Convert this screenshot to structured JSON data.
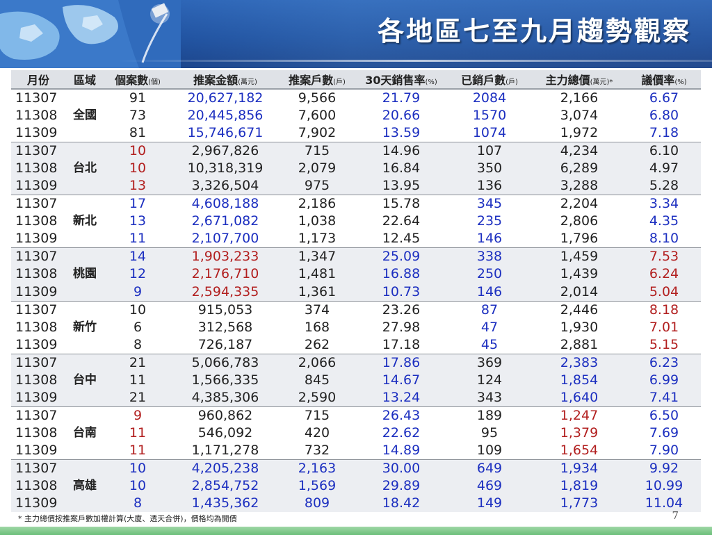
{
  "title": "各地區七至九月趨勢觀察",
  "headers": [
    {
      "label": "月份",
      "unit": ""
    },
    {
      "label": "區域",
      "unit": ""
    },
    {
      "label": "個案數",
      "unit": "(個)"
    },
    {
      "label": "推案金額",
      "unit": "(萬元)"
    },
    {
      "label": "推案戶數",
      "unit": "(戶)"
    },
    {
      "label": "30天銷售率",
      "unit": "(%)"
    },
    {
      "label": "已銷戶數",
      "unit": "(戶)"
    },
    {
      "label": "主力總價",
      "unit": "(萬元)*"
    },
    {
      "label": "議價率",
      "unit": "(%)"
    }
  ],
  "groups": [
    {
      "region": "全國",
      "rows": [
        {
          "month": "11307",
          "cases": "91",
          "amount": "20,627,182",
          "units": "9,566",
          "sales_rate": "21.79",
          "sold": "2084",
          "main_price": "2,166",
          "bargain": "6.67",
          "colors": {
            "cases": "",
            "amount": "blue",
            "units": "",
            "sales_rate": "blue",
            "sold": "blue",
            "main_price": "",
            "bargain": "blue"
          }
        },
        {
          "month": "11308",
          "cases": "73",
          "amount": "20,445,856",
          "units": "7,600",
          "sales_rate": "20.66",
          "sold": "1570",
          "main_price": "3,074",
          "bargain": "6.80",
          "colors": {
            "cases": "",
            "amount": "blue",
            "units": "",
            "sales_rate": "blue",
            "sold": "blue",
            "main_price": "",
            "bargain": "blue"
          }
        },
        {
          "month": "11309",
          "cases": "81",
          "amount": "15,746,671",
          "units": "7,902",
          "sales_rate": "13.59",
          "sold": "1074",
          "main_price": "1,972",
          "bargain": "7.18",
          "colors": {
            "cases": "",
            "amount": "blue",
            "units": "",
            "sales_rate": "blue",
            "sold": "blue",
            "main_price": "",
            "bargain": "blue"
          }
        }
      ]
    },
    {
      "region": "台北",
      "rows": [
        {
          "month": "11307",
          "cases": "10",
          "amount": "2,967,826",
          "units": "715",
          "sales_rate": "14.96",
          "sold": "107",
          "main_price": "4,234",
          "bargain": "6.10",
          "colors": {
            "cases": "red",
            "amount": "",
            "units": "",
            "sales_rate": "",
            "sold": "",
            "main_price": "",
            "bargain": ""
          }
        },
        {
          "month": "11308",
          "cases": "10",
          "amount": "10,318,319",
          "units": "2,079",
          "sales_rate": "16.84",
          "sold": "350",
          "main_price": "6,289",
          "bargain": "4.97",
          "colors": {
            "cases": "red",
            "amount": "",
            "units": "",
            "sales_rate": "",
            "sold": "",
            "main_price": "",
            "bargain": ""
          }
        },
        {
          "month": "11309",
          "cases": "13",
          "amount": "3,326,504",
          "units": "975",
          "sales_rate": "13.95",
          "sold": "136",
          "main_price": "3,288",
          "bargain": "5.28",
          "colors": {
            "cases": "red",
            "amount": "",
            "units": "",
            "sales_rate": "",
            "sold": "",
            "main_price": "",
            "bargain": ""
          }
        }
      ]
    },
    {
      "region": "新北",
      "rows": [
        {
          "month": "11307",
          "cases": "17",
          "amount": "4,608,188",
          "units": "2,186",
          "sales_rate": "15.78",
          "sold": "345",
          "main_price": "2,204",
          "bargain": "3.34",
          "colors": {
            "cases": "blue",
            "amount": "blue",
            "units": "",
            "sales_rate": "",
            "sold": "blue",
            "main_price": "",
            "bargain": "blue"
          }
        },
        {
          "month": "11308",
          "cases": "13",
          "amount": "2,671,082",
          "units": "1,038",
          "sales_rate": "22.64",
          "sold": "235",
          "main_price": "2,806",
          "bargain": "4.35",
          "colors": {
            "cases": "blue",
            "amount": "blue",
            "units": "",
            "sales_rate": "",
            "sold": "blue",
            "main_price": "",
            "bargain": "blue"
          }
        },
        {
          "month": "11309",
          "cases": "11",
          "amount": "2,107,700",
          "units": "1,173",
          "sales_rate": "12.45",
          "sold": "146",
          "main_price": "1,796",
          "bargain": "8.10",
          "colors": {
            "cases": "blue",
            "amount": "blue",
            "units": "",
            "sales_rate": "",
            "sold": "blue",
            "main_price": "",
            "bargain": "blue"
          }
        }
      ]
    },
    {
      "region": "桃園",
      "rows": [
        {
          "month": "11307",
          "cases": "14",
          "amount": "1,903,233",
          "units": "1,347",
          "sales_rate": "25.09",
          "sold": "338",
          "main_price": "1,459",
          "bargain": "7.53",
          "colors": {
            "cases": "blue",
            "amount": "red",
            "units": "",
            "sales_rate": "blue",
            "sold": "blue",
            "main_price": "",
            "bargain": "red"
          }
        },
        {
          "month": "11308",
          "cases": "12",
          "amount": "2,176,710",
          "units": "1,481",
          "sales_rate": "16.88",
          "sold": "250",
          "main_price": "1,439",
          "bargain": "6.24",
          "colors": {
            "cases": "blue",
            "amount": "red",
            "units": "",
            "sales_rate": "blue",
            "sold": "blue",
            "main_price": "",
            "bargain": "red"
          }
        },
        {
          "month": "11309",
          "cases": "9",
          "amount": "2,594,335",
          "units": "1,361",
          "sales_rate": "10.73",
          "sold": "146",
          "main_price": "2,014",
          "bargain": "5.04",
          "colors": {
            "cases": "blue",
            "amount": "red",
            "units": "",
            "sales_rate": "blue",
            "sold": "blue",
            "main_price": "",
            "bargain": "red"
          }
        }
      ]
    },
    {
      "region": "新竹",
      "rows": [
        {
          "month": "11307",
          "cases": "10",
          "amount": "915,053",
          "units": "374",
          "sales_rate": "23.26",
          "sold": "87",
          "main_price": "2,446",
          "bargain": "8.18",
          "colors": {
            "cases": "",
            "amount": "",
            "units": "",
            "sales_rate": "",
            "sold": "blue",
            "main_price": "",
            "bargain": "red"
          }
        },
        {
          "month": "11308",
          "cases": "6",
          "amount": "312,568",
          "units": "168",
          "sales_rate": "27.98",
          "sold": "47",
          "main_price": "1,930",
          "bargain": "7.01",
          "colors": {
            "cases": "",
            "amount": "",
            "units": "",
            "sales_rate": "",
            "sold": "blue",
            "main_price": "",
            "bargain": "red"
          }
        },
        {
          "month": "11309",
          "cases": "8",
          "amount": "726,187",
          "units": "262",
          "sales_rate": "17.18",
          "sold": "45",
          "main_price": "2,881",
          "bargain": "5.15",
          "colors": {
            "cases": "",
            "amount": "",
            "units": "",
            "sales_rate": "",
            "sold": "blue",
            "main_price": "",
            "bargain": "red"
          }
        }
      ]
    },
    {
      "region": "台中",
      "rows": [
        {
          "month": "11307",
          "cases": "21",
          "amount": "5,066,783",
          "units": "2,066",
          "sales_rate": "17.86",
          "sold": "369",
          "main_price": "2,383",
          "bargain": "6.23",
          "colors": {
            "cases": "",
            "amount": "",
            "units": "",
            "sales_rate": "blue",
            "sold": "",
            "main_price": "blue",
            "bargain": "blue"
          }
        },
        {
          "month": "11308",
          "cases": "11",
          "amount": "1,566,335",
          "units": "845",
          "sales_rate": "14.67",
          "sold": "124",
          "main_price": "1,854",
          "bargain": "6.99",
          "colors": {
            "cases": "",
            "amount": "",
            "units": "",
            "sales_rate": "blue",
            "sold": "",
            "main_price": "blue",
            "bargain": "blue"
          }
        },
        {
          "month": "11309",
          "cases": "21",
          "amount": "4,385,306",
          "units": "2,590",
          "sales_rate": "13.24",
          "sold": "343",
          "main_price": "1,640",
          "bargain": "7.41",
          "colors": {
            "cases": "",
            "amount": "",
            "units": "",
            "sales_rate": "blue",
            "sold": "",
            "main_price": "blue",
            "bargain": "blue"
          }
        }
      ]
    },
    {
      "region": "台南",
      "rows": [
        {
          "month": "11307",
          "cases": "9",
          "amount": "960,862",
          "units": "715",
          "sales_rate": "26.43",
          "sold": "189",
          "main_price": "1,247",
          "bargain": "6.50",
          "colors": {
            "cases": "red",
            "amount": "",
            "units": "",
            "sales_rate": "blue",
            "sold": "",
            "main_price": "red",
            "bargain": "blue"
          }
        },
        {
          "month": "11308",
          "cases": "11",
          "amount": "546,092",
          "units": "420",
          "sales_rate": "22.62",
          "sold": "95",
          "main_price": "1,379",
          "bargain": "7.69",
          "colors": {
            "cases": "red",
            "amount": "",
            "units": "",
            "sales_rate": "blue",
            "sold": "",
            "main_price": "red",
            "bargain": "blue"
          }
        },
        {
          "month": "11309",
          "cases": "11",
          "amount": "1,171,278",
          "units": "732",
          "sales_rate": "14.89",
          "sold": "109",
          "main_price": "1,654",
          "bargain": "7.90",
          "colors": {
            "cases": "red",
            "amount": "",
            "units": "",
            "sales_rate": "blue",
            "sold": "",
            "main_price": "red",
            "bargain": "blue"
          }
        }
      ]
    },
    {
      "region": "高雄",
      "rows": [
        {
          "month": "11307",
          "cases": "10",
          "amount": "4,205,238",
          "units": "2,163",
          "sales_rate": "30.00",
          "sold": "649",
          "main_price": "1,934",
          "bargain": "9.92",
          "colors": {
            "cases": "blue",
            "amount": "blue",
            "units": "blue",
            "sales_rate": "blue",
            "sold": "blue",
            "main_price": "blue",
            "bargain": "blue"
          }
        },
        {
          "month": "11308",
          "cases": "10",
          "amount": "2,854,752",
          "units": "1,569",
          "sales_rate": "29.89",
          "sold": "469",
          "main_price": "1,819",
          "bargain": "10.99",
          "colors": {
            "cases": "blue",
            "amount": "blue",
            "units": "blue",
            "sales_rate": "blue",
            "sold": "blue",
            "main_price": "blue",
            "bargain": "blue"
          }
        },
        {
          "month": "11309",
          "cases": "8",
          "amount": "1,435,362",
          "units": "809",
          "sales_rate": "18.42",
          "sold": "149",
          "main_price": "1,773",
          "bargain": "11.04",
          "colors": {
            "cases": "blue",
            "amount": "blue",
            "units": "blue",
            "sales_rate": "blue",
            "sold": "blue",
            "main_price": "blue",
            "bargain": "blue"
          }
        }
      ]
    }
  ],
  "footnote": "* 主力總價按推案戶數加權計算(大廈、透天合併)，價格均為開價",
  "page_number": "7",
  "colors": {
    "blue": "#1c2fc0",
    "red": "#b21f1f",
    "banner": "#1d4f9e",
    "footer_bar": "#6cbf7a"
  }
}
